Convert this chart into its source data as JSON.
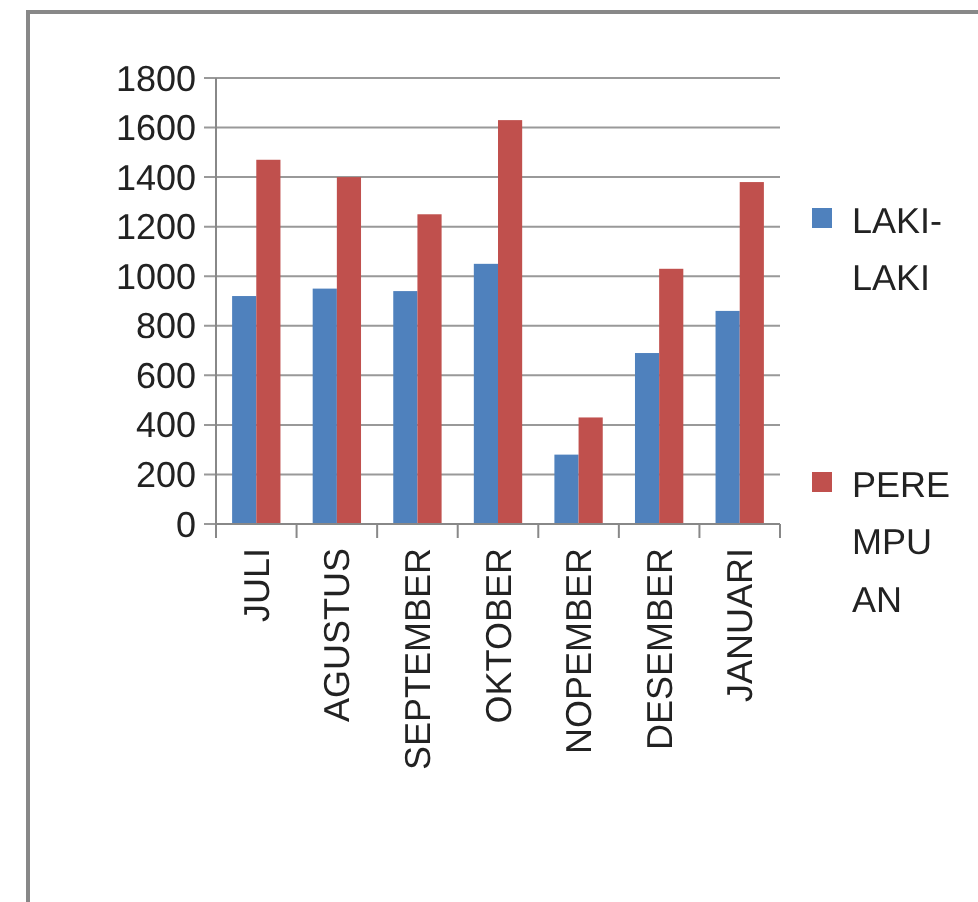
{
  "chart_data": {
    "type": "bar",
    "categories": [
      "JULI",
      "AGUSTUS",
      "SEPTEMBER",
      "OKTOBER",
      "NOPEMBER",
      "DESEMBER",
      "JANUARI"
    ],
    "series": [
      {
        "name": "LAKI-LAKI",
        "color": "#4f81bd",
        "values": [
          920,
          950,
          940,
          1050,
          280,
          690,
          860
        ]
      },
      {
        "name": "PEREMPUAN",
        "color": "#c0504d",
        "values": [
          1470,
          1400,
          1250,
          1630,
          430,
          1030,
          1380
        ]
      }
    ],
    "ylim": [
      0,
      1800
    ],
    "yticks": [
      0,
      200,
      400,
      600,
      800,
      1000,
      1200,
      1400,
      1600,
      1800
    ],
    "grid": "y",
    "legend": "right"
  }
}
